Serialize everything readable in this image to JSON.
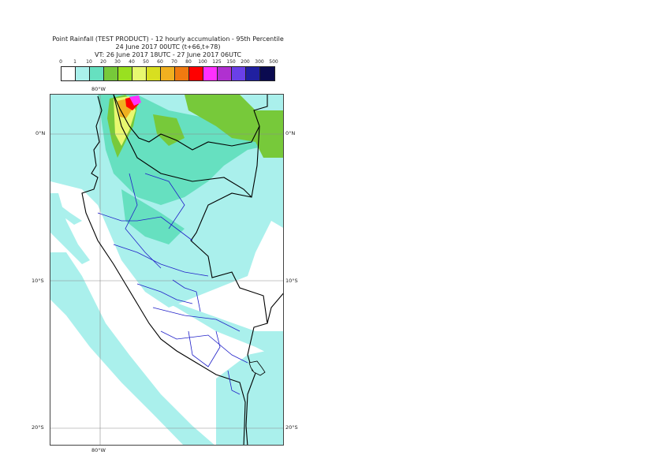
{
  "title": {
    "line1": "Point Rainfall (TEST PRODUCT) - 12 hourly accumulation - 95th Percentile",
    "line2": "24 June 2017 00UTC (t+66,t+78)",
    "line3": "VT: 26 June 2017 18UTC - 27 June 2017 06UTC"
  },
  "legend": {
    "ticks": [
      "0",
      "1",
      "10",
      "20",
      "30",
      "40",
      "50",
      "60",
      "70",
      "80",
      "100",
      "125",
      "150",
      "200",
      "300",
      "500"
    ],
    "colors": [
      "#ffffff",
      "#aaf0ec",
      "#66e0c0",
      "#77c93a",
      "#99e020",
      "#e8f870",
      "#d8df20",
      "#f0b020",
      "#f07a10",
      "#ff0000",
      "#ff30ff",
      "#b030d0",
      "#6a40e8",
      "#2020a0",
      "#0a0a50"
    ]
  },
  "axes": {
    "top_lon": "80°W",
    "bottom_lon": "80°W",
    "lat_0": "0°N",
    "lat_10": "10°S",
    "lat_20": "20°S"
  }
}
